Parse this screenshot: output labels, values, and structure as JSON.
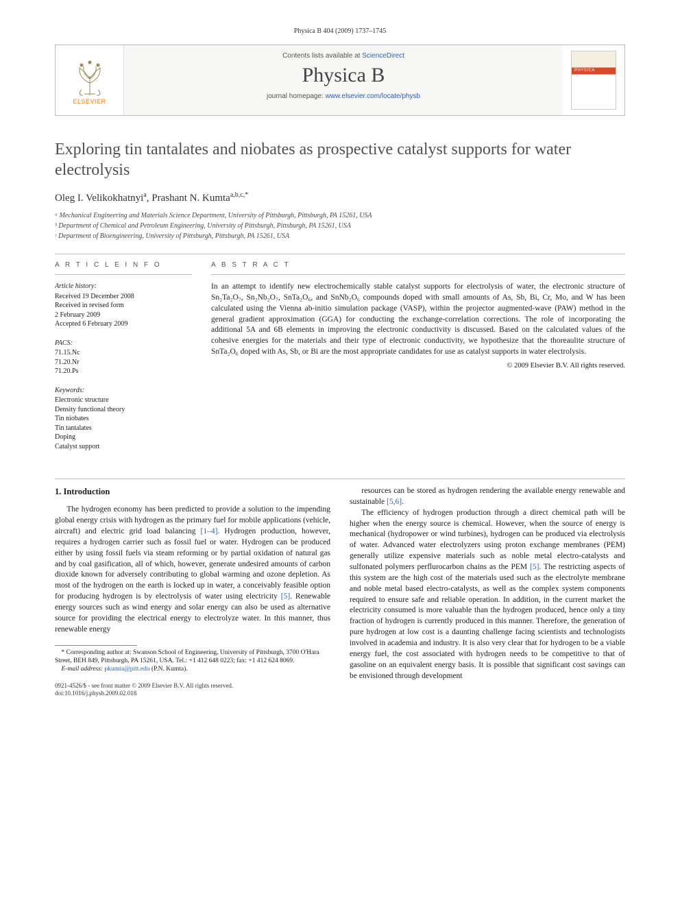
{
  "running_head": "Physica B 404 (2009) 1737–1745",
  "header": {
    "contents_prefix": "Contents lists available at ",
    "contents_link": "ScienceDirect",
    "journal": "Physica B",
    "homepage_prefix": "journal homepage: ",
    "homepage_link": "www.elsevier.com/locate/physb",
    "publisher_label": "ELSEVIER"
  },
  "title": "Exploring tin tantalates and niobates as prospective catalyst supports for water electrolysis",
  "authors_html": "Oleg I. Velikokhatnyi ᵃ, Prashant N. Kumta ᵃ,ᵇ,ᶜ,*",
  "authors": [
    {
      "name": "Oleg I. Velikokhatnyi",
      "sup": "a"
    },
    {
      "name": "Prashant N. Kumta",
      "sup": "a,b,c,*"
    }
  ],
  "affiliations": [
    "ᵃ Mechanical Engineering and Materials Science Department, University of Pittsburgh, Pittsburgh, PA 15261, USA",
    "ᵇ Department of Chemical and Petroleum Engineering, University of Pittsburgh, Pittsburgh, PA 15261, USA",
    "ᶜ Department of Bioengineering, University of Pittsburgh, Pittsburgh, PA 15261, USA"
  ],
  "article_info": {
    "label": "A R T I C L E   I N F O",
    "history_head": "Article history:",
    "history": [
      "Received 19 December 2008",
      "Received in revised form",
      "2 February 2009",
      "Accepted 6 February 2009"
    ],
    "pacs_head": "PACS:",
    "pacs": [
      "71.15.Nc",
      "71.20.Nr",
      "71.20.Ps"
    ],
    "keywords_head": "Keywords:",
    "keywords": [
      "Electronic structure",
      "Density functional theory",
      "Tin niobates",
      "Tin tantalates",
      "Doping",
      "Catalyst support"
    ]
  },
  "abstract": {
    "label": "A B S T R A C T",
    "text": "In an attempt to identify new electrochemically stable catalyst supports for electrolysis of water, the electronic structure of Sn₂Ta₂O₇, Sn₂Nb₂O₇, SnTa₂O₆, and SnNb₂O₆ compounds doped with small amounts of As, Sb, Bi, Cr, Mo, and W has been calculated using the Vienna ab-initio simulation package (VASP), within the projector augmented-wave (PAW) method in the general gradient approximation (GGA) for conducting the exchange-correlation corrections. The role of incorporating the additional 5A and 6B elements in improving the electronic conductivity is discussed. Based on the calculated values of the cohesive energies for the materials and their type of electronic conductivity, we hypothesize that the thoreaulite structure of SnTa₂O₆ doped with As, Sb, or Bi are the most appropriate candidates for use as catalyst supports in water electrolysis.",
    "copyright": "© 2009 Elsevier B.V. All rights reserved."
  },
  "section1": {
    "heading": "1. Introduction",
    "para1": "The hydrogen economy has been predicted to provide a solution to the impending global energy crisis with hydrogen as the primary fuel for mobile applications (vehicle, aircraft) and electric grid load balancing [1–4]. Hydrogen production, however, requires a hydrogen carrier such as fossil fuel or water. Hydrogen can be produced either by using fossil fuels via steam reforming or by partial oxidation of natural gas and by coal gasification, all of which, however, generate undesired amounts of carbon dioxide known for adversely contributing to global warming and ozone depletion. As most of the hydrogen on the earth is locked up in water, a conceivably feasible option for producing hydrogen is by electrolysis of water using electricity [5]. Renewable energy sources such as wind energy and solar energy can also be used as alternative source for providing the electrical energy to electrolyze water. In this manner, thus renewable energy",
    "para2": "resources can be stored as hydrogen rendering the available energy renewable and sustainable [5,6].",
    "para3": "The efficiency of hydrogen production through a direct chemical path will be higher when the energy source is chemical. However, when the source of energy is mechanical (hydropower or wind turbines), hydrogen can be produced via electrolysis of water. Advanced water electrolyzers using proton exchange membranes (PEM) generally utilize expensive materials such as noble metal electro-catalysts and sulfonated polymers perflurocarbon chains as the PEM [5]. The restricting aspects of this system are the high cost of the materials used such as the electrolyte membrane and noble metal based electro-catalysts, as well as the complex system components required to ensure safe and reliable operation. In addition, in the current market the electricity consumed is more valuable than the hydrogen produced, hence only a tiny fraction of hydrogen is currently produced in this manner. Therefore, the generation of pure hydrogen at low cost is a daunting challenge facing scientists and technologists involved in academia and industry. It is also very clear that for hydrogen to be a viable energy fuel, the cost associated with hydrogen needs to be competitive to that of gasoline on an equivalent energy basis. It is possible that significant cost savings can be envisioned through development"
  },
  "footnote": {
    "corr": "* Corresponding author at: Swanson School of Engineering, University of Pittsburgh, 3700 O'Hara Street, BEH 849, Pittsburgh, PA 15261, USA. Tel.: +1 412 648 0223; fax: +1 412 624 8069.",
    "email_label": "E-mail address: ",
    "email": "pkumta@pitt.edu",
    "email_owner": " (P.N. Kumta)."
  },
  "bottom": {
    "issn_line": "0921-4526/$ - see front matter © 2009 Elsevier B.V. All rights reserved.",
    "doi_line": "doi:10.1016/j.physb.2009.02.018"
  },
  "colors": {
    "link": "#2a63b0",
    "elsevier_orange": "#ff7a00",
    "text": "#1a1a1a",
    "rule": "#bbbbbb"
  }
}
